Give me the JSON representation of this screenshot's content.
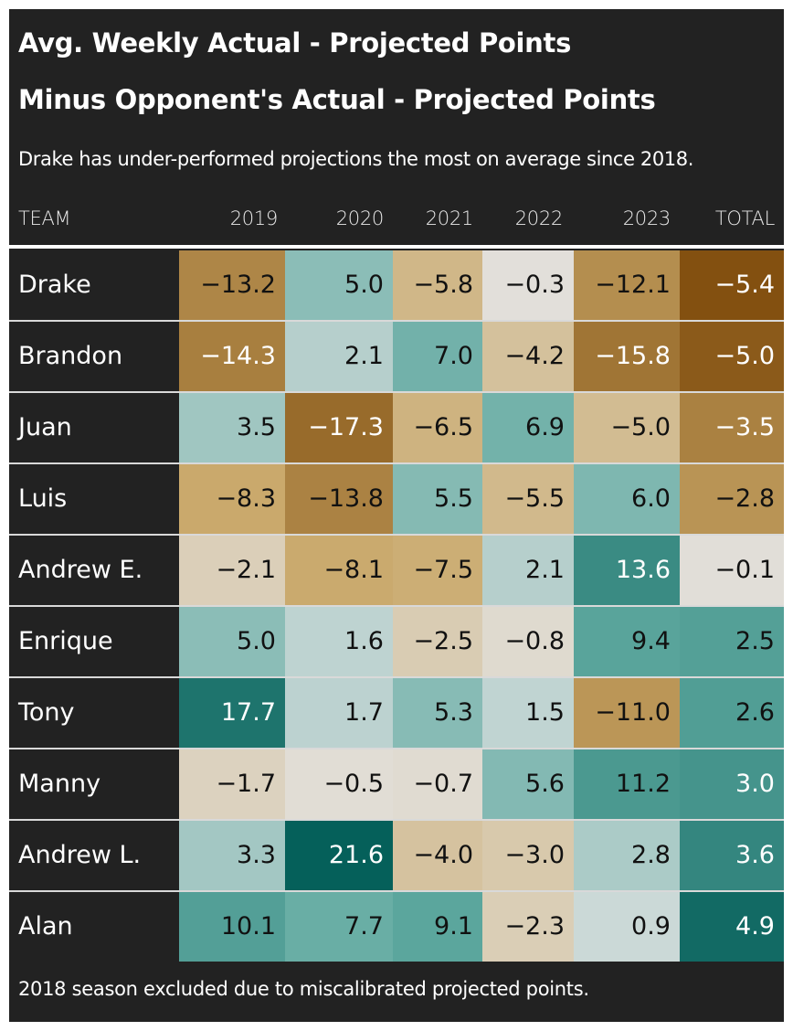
{
  "title_line1": "Avg. Weekly Actual - Projected Points",
  "title_line2": "Minus Opponent's Actual - Projected Points",
  "subtitle": "Drake has under-performed projections the most on average since 2018.",
  "footnote": "2018 season excluded due to miscalibrated projected points.",
  "colors": {
    "background": "#222222",
    "negative_strong": "#835010",
    "negative_mid": "#c9a869",
    "neutral": "#e4e4e4",
    "positive_mid": "#5fa9a0",
    "positive_strong": "#05605a"
  },
  "chart_data": {
    "type": "table",
    "title": "Avg. Weekly Actual - Projected Points Minus Opponent's Actual - Projected Points",
    "columns": [
      "TEAM",
      "2019",
      "2020",
      "2021",
      "2022",
      "2023",
      "TOTAL"
    ],
    "rows": [
      {
        "team": "Drake",
        "values": [
          "−13.2",
          "5.0",
          "−5.8",
          "−0.3",
          "−12.1",
          "−5.4"
        ]
      },
      {
        "team": "Brandon",
        "values": [
          "−14.3",
          "2.1",
          "7.0",
          "−4.2",
          "−15.8",
          "−5.0"
        ]
      },
      {
        "team": "Juan",
        "values": [
          "3.5",
          "−17.3",
          "−6.5",
          "6.9",
          "−5.0",
          "−3.5"
        ]
      },
      {
        "team": "Luis",
        "values": [
          "−8.3",
          "−13.8",
          "5.5",
          "−5.5",
          "6.0",
          "−2.8"
        ]
      },
      {
        "team": "Andrew E.",
        "values": [
          "−2.1",
          "−8.1",
          "−7.5",
          "2.1",
          "13.6",
          "−0.1"
        ]
      },
      {
        "team": "Enrique",
        "values": [
          "5.0",
          "1.6",
          "−2.5",
          "−0.8",
          "9.4",
          "2.5"
        ]
      },
      {
        "team": "Tony",
        "values": [
          "17.7",
          "1.7",
          "5.3",
          "1.5",
          "−11.0",
          "2.6"
        ]
      },
      {
        "team": "Manny",
        "values": [
          "−1.7",
          "−0.5",
          "−0.7",
          "5.6",
          "11.2",
          "3.0"
        ]
      },
      {
        "team": "Andrew L.",
        "values": [
          "3.3",
          "21.6",
          "−4.0",
          "−3.0",
          "2.8",
          "3.6"
        ]
      },
      {
        "team": "Alan",
        "values": [
          "10.1",
          "7.7",
          "9.1",
          "−2.3",
          "0.9",
          "4.9"
        ]
      }
    ]
  }
}
